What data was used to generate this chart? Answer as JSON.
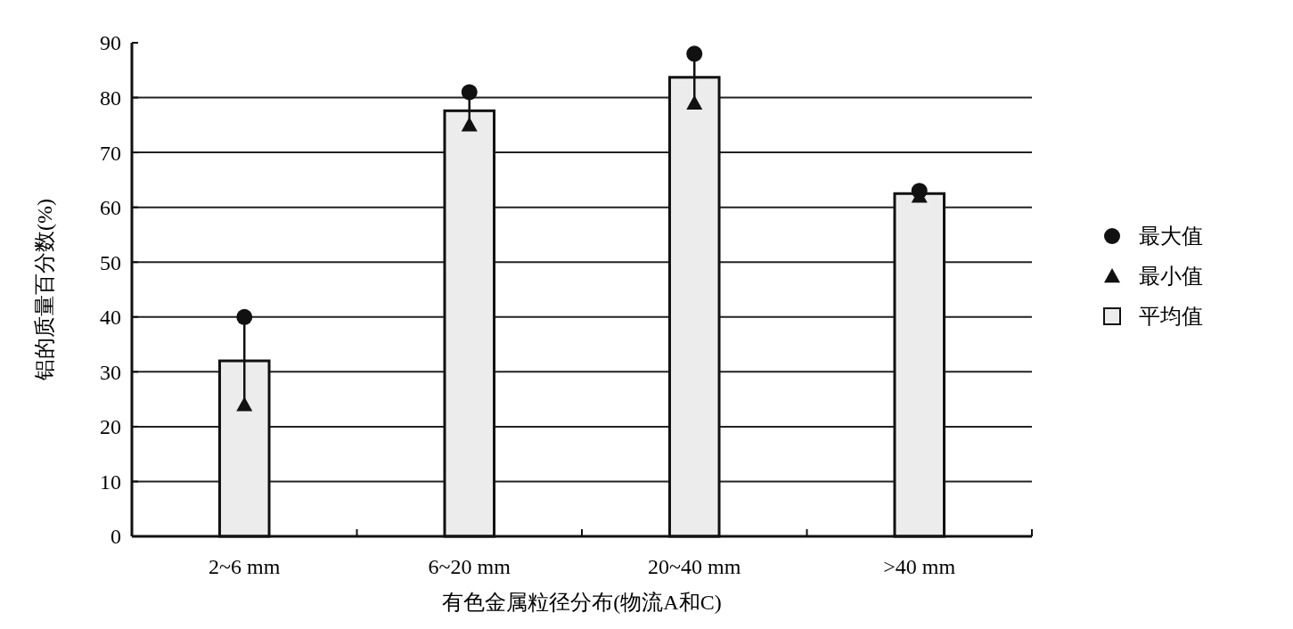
{
  "chart_data": {
    "type": "bar",
    "xlabel": "有色金属粒径分布(物流A和C)",
    "ylabel": "铝的质量百分数(%)",
    "categories": [
      "2~6 mm",
      "6~20 mm",
      "20~40 mm",
      ">40 mm"
    ],
    "series": [
      {
        "name": "最大值",
        "type": "scatter",
        "marker": "circle",
        "color": "#111111",
        "x": [
          "2~6 mm",
          "6~20 mm",
          "20~40 mm",
          ">40 mm"
        ],
        "values": [
          40,
          81,
          88,
          63
        ]
      },
      {
        "name": "最小值",
        "type": "scatter",
        "marker": "triangle",
        "color": "#111111",
        "x": [
          "2~6 mm",
          "6~20 mm",
          "20~40 mm",
          ">40 mm"
        ],
        "values": [
          24,
          75,
          79,
          62
        ]
      },
      {
        "name": "平均值",
        "type": "bar",
        "color": "#ececec",
        "values": [
          32,
          77.6,
          83.7,
          62.5
        ]
      }
    ],
    "ylim": [
      0,
      90
    ],
    "yticks": [
      0,
      10,
      20,
      30,
      40,
      50,
      60,
      70,
      80,
      90
    ],
    "grid": "y",
    "legend": "right"
  }
}
